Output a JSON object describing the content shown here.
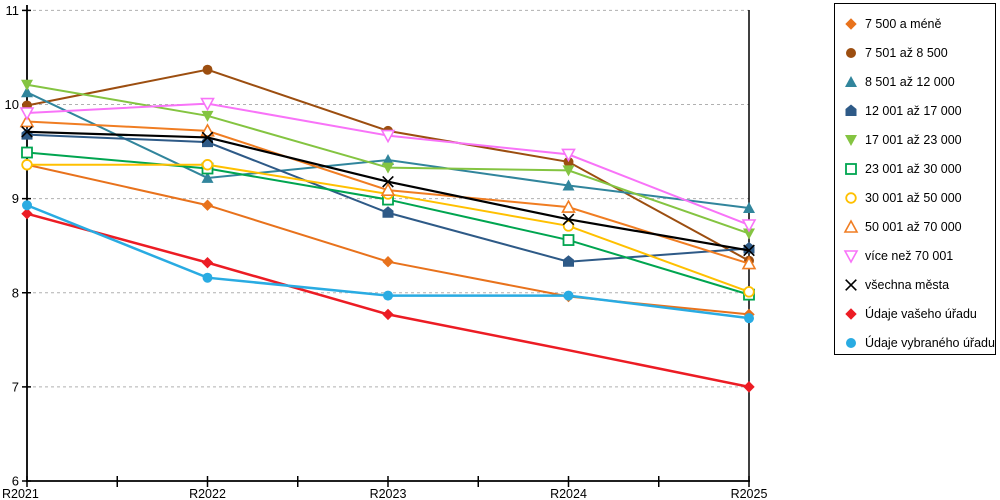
{
  "chart_data": {
    "type": "line",
    "title": "",
    "xlabel": "",
    "ylabel": "",
    "categories": [
      "R2021",
      "R2022",
      "R2023",
      "R2024",
      "R2025"
    ],
    "y_ticks": [
      6,
      7,
      8,
      9,
      10,
      11
    ],
    "ylim": [
      6,
      11
    ],
    "grid": "horizontal-dashed",
    "grid_color": "#b0b0b0",
    "axis_color": "#000000",
    "legend_position": "right-box",
    "minor_x_ticks_between_categories": true,
    "series": [
      {
        "name": "7 500 a méně",
        "marker": "diamond",
        "color": "#e8721c",
        "line_width": 2,
        "values": [
          9.36,
          8.93,
          8.33,
          7.96,
          7.77
        ]
      },
      {
        "name": "7 501 až 8 500",
        "marker": "circle",
        "color": "#9c4e10",
        "line_width": 2,
        "values": [
          9.99,
          10.37,
          9.72,
          9.39,
          8.34
        ]
      },
      {
        "name": "8 501 až 12 000",
        "marker": "triangle-up",
        "color": "#31859c",
        "line_width": 2,
        "values": [
          10.13,
          9.22,
          9.41,
          9.14,
          8.9
        ]
      },
      {
        "name": "12 001 až 17 000",
        "marker": "pentagon",
        "color": "#2e5a87",
        "line_width": 2,
        "values": [
          9.68,
          9.6,
          8.85,
          8.33,
          8.47
        ]
      },
      {
        "name": "17 001 až 23 000",
        "marker": "triangle-down",
        "color": "#84c441",
        "line_width": 2,
        "values": [
          10.21,
          9.88,
          9.33,
          9.3,
          8.63
        ]
      },
      {
        "name": "23 001 až 30 000",
        "marker": "square-open",
        "color": "#00a550",
        "line_width": 2,
        "values": [
          9.49,
          9.32,
          8.99,
          8.56,
          7.98
        ]
      },
      {
        "name": "30 001 až 50 000",
        "marker": "circle-open",
        "color": "#ffc000",
        "line_width": 2,
        "values": [
          9.36,
          9.36,
          9.05,
          8.71,
          8.01
        ]
      },
      {
        "name": "50 001 až 70 000",
        "marker": "triangle-up-open",
        "color": "#f07d22",
        "line_width": 2,
        "values": [
          9.82,
          9.72,
          9.09,
          8.91,
          8.31
        ]
      },
      {
        "name": "více než 70 001",
        "marker": "triangle-down-open",
        "color": "#f873f8",
        "line_width": 2,
        "values": [
          9.91,
          10.01,
          9.67,
          9.47,
          8.72
        ]
      },
      {
        "name": "všechna města",
        "marker": "x",
        "color": "#000000",
        "line_width": 2.2,
        "values": [
          9.71,
          9.65,
          9.18,
          8.78,
          8.45
        ]
      },
      {
        "name": "Údaje vašeho úřadu",
        "marker": "diamond",
        "color": "#ec1c24",
        "line_width": 2.5,
        "values": [
          8.84,
          8.32,
          7.77,
          7.39,
          7.0
        ],
        "skip_markers": [
          3
        ]
      },
      {
        "name": "Údaje vybraného úřadu",
        "marker": "circle",
        "color": "#29abe2",
        "line_width": 2.5,
        "values": [
          8.93,
          8.16,
          7.97,
          7.97,
          7.73
        ]
      }
    ]
  }
}
